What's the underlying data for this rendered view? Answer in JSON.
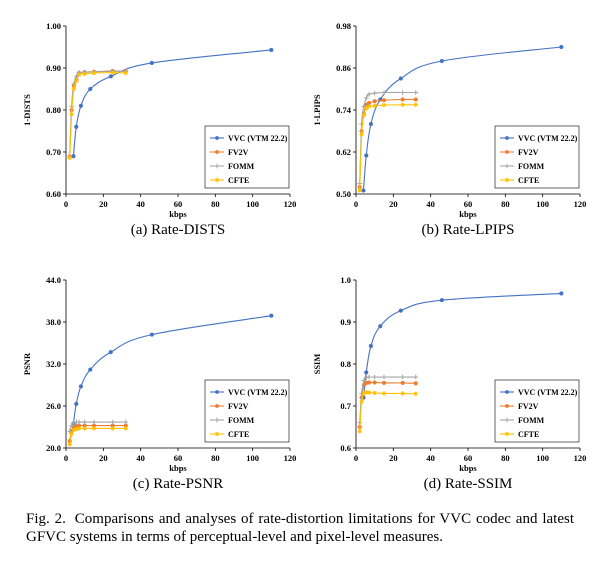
{
  "legend_series_names": [
    "VVC (VTM 22.2)",
    "FV2V",
    "FOMM",
    "CFTE"
  ],
  "colors": {
    "vvc": "#4472C4",
    "fv2v": "#ED7D31",
    "fomm": "#A5A5A5",
    "cfte": "#FFC000"
  },
  "chart_data": [
    {
      "type": "line",
      "caption": "(a) Rate-DISTS",
      "xlabel": "kbps",
      "ylabel": "1-DISTS",
      "xlim": [
        0,
        120
      ],
      "ylim": [
        0.6,
        1.0
      ],
      "xticks": [
        "0",
        "20",
        "40",
        "60",
        "80",
        "100",
        "120"
      ],
      "yticks": [
        "0.60",
        "0.70",
        "0.80",
        "0.90",
        "1.00"
      ],
      "grid": false,
      "legend": "bottom-right",
      "series": [
        {
          "name": "VVC (VTM 22.2)",
          "x": [
            4.0,
            5.5,
            8.0,
            13.0,
            24.0,
            46.0,
            110.0
          ],
          "y": [
            0.69,
            0.76,
            0.81,
            0.85,
            0.88,
            0.912,
            0.943
          ]
        },
        {
          "name": "FV2V",
          "x": [
            2.0,
            3.0,
            4.2,
            5.6,
            7.0,
            10.0,
            15.0,
            25.0,
            32.0
          ],
          "y": [
            0.689,
            0.8,
            0.858,
            0.873,
            0.888,
            0.89,
            0.891,
            0.893,
            0.892
          ]
        },
        {
          "name": "FOMM",
          "x": [
            2.0,
            3.0,
            4.2,
            5.6,
            7.0,
            10.0,
            15.0,
            25.0,
            32.0
          ],
          "y": [
            0.689,
            0.808,
            0.862,
            0.88,
            0.889,
            0.89,
            0.891,
            0.892,
            0.892
          ]
        },
        {
          "name": "CFTE",
          "x": [
            2.0,
            3.0,
            4.2,
            5.6,
            7.0,
            10.0,
            15.0,
            25.0,
            32.0
          ],
          "y": [
            0.686,
            0.79,
            0.85,
            0.869,
            0.884,
            0.886,
            0.888,
            0.889,
            0.888
          ]
        }
      ]
    },
    {
      "type": "line",
      "caption": "(b) Rate-LPIPS",
      "xlabel": "kbps",
      "ylabel": "1-LPIPS",
      "xlim": [
        0,
        120
      ],
      "ylim": [
        0.5,
        0.98
      ],
      "xticks": [
        "0",
        "20",
        "40",
        "60",
        "80",
        "100",
        "120"
      ],
      "yticks": [
        "0.50",
        "0.62",
        "0.74",
        "0.86",
        "0.98"
      ],
      "grid": false,
      "legend": "bottom-right",
      "series": [
        {
          "name": "VVC (VTM 22.2)",
          "x": [
            4.0,
            5.5,
            8.0,
            13.0,
            24.0,
            46.0,
            110.0
          ],
          "y": [
            0.51,
            0.61,
            0.7,
            0.77,
            0.83,
            0.88,
            0.92
          ]
        },
        {
          "name": "FV2V",
          "x": [
            2.0,
            3.0,
            4.2,
            5.6,
            7.0,
            10.0,
            15.0,
            25.0,
            32.0
          ],
          "y": [
            0.52,
            0.68,
            0.73,
            0.755,
            0.76,
            0.765,
            0.768,
            0.77,
            0.77
          ]
        },
        {
          "name": "FOMM",
          "x": [
            2.0,
            3.0,
            4.2,
            5.6,
            7.0,
            10.0,
            15.0,
            25.0,
            32.0
          ],
          "y": [
            0.53,
            0.7,
            0.75,
            0.775,
            0.785,
            0.788,
            0.79,
            0.79,
            0.79
          ]
        },
        {
          "name": "CFTE",
          "x": [
            2.0,
            3.0,
            4.2,
            5.6,
            7.0,
            10.0,
            15.0,
            25.0,
            32.0
          ],
          "y": [
            0.51,
            0.67,
            0.725,
            0.745,
            0.75,
            0.752,
            0.754,
            0.755,
            0.755
          ]
        }
      ]
    },
    {
      "type": "line",
      "caption": "(c) Rate-PSNR",
      "xlabel": "kbps",
      "ylabel": "PSNR",
      "xlim": [
        0,
        120
      ],
      "ylim": [
        20.0,
        44.0
      ],
      "xticks": [
        "0",
        "20",
        "40",
        "60",
        "80",
        "100",
        "120"
      ],
      "yticks": [
        "20.0",
        "26.0",
        "32.0",
        "38.0",
        "44.0"
      ],
      "grid": false,
      "legend": "bottom-right",
      "series": [
        {
          "name": "VVC (VTM 22.2)",
          "x": [
            4.0,
            5.5,
            8.0,
            13.0,
            24.0,
            46.0,
            110.0
          ],
          "y": [
            23.5,
            26.3,
            28.8,
            31.2,
            33.7,
            36.2,
            38.9
          ]
        },
        {
          "name": "FV2V",
          "x": [
            2.0,
            3.0,
            4.2,
            5.6,
            7.0,
            10.0,
            15.0,
            25.0,
            32.0
          ],
          "y": [
            21.0,
            22.4,
            23.0,
            23.1,
            23.2,
            23.2,
            23.2,
            23.2,
            23.2
          ]
        },
        {
          "name": "FOMM",
          "x": [
            2.0,
            3.0,
            4.2,
            5.6,
            7.0,
            10.0,
            15.0,
            25.0,
            32.0
          ],
          "y": [
            22.4,
            23.2,
            23.6,
            23.7,
            23.7,
            23.7,
            23.7,
            23.7,
            23.7
          ]
        },
        {
          "name": "CFTE",
          "x": [
            2.0,
            3.0,
            4.2,
            5.6,
            7.0,
            10.0,
            15.0,
            25.0,
            32.0
          ],
          "y": [
            20.5,
            22.0,
            22.6,
            22.7,
            22.8,
            22.8,
            22.8,
            22.8,
            22.8
          ]
        }
      ]
    },
    {
      "type": "line",
      "caption": "(d) Rate-SSIM",
      "xlabel": "kbps",
      "ylabel": "SSIM",
      "xlim": [
        0,
        120
      ],
      "ylim": [
        0.6,
        1.0
      ],
      "xticks": [
        "0",
        "20",
        "40",
        "60",
        "80",
        "100",
        "120"
      ],
      "yticks": [
        "0.6",
        "0.7",
        "0.8",
        "0.9",
        "1.0"
      ],
      "grid": false,
      "legend": "bottom-right",
      "series": [
        {
          "name": "VVC (VTM 22.2)",
          "x": [
            4.0,
            5.5,
            8.0,
            13.0,
            24.0,
            46.0,
            110.0
          ],
          "y": [
            0.72,
            0.78,
            0.843,
            0.89,
            0.927,
            0.952,
            0.968
          ]
        },
        {
          "name": "FV2V",
          "x": [
            2.0,
            3.0,
            4.2,
            5.6,
            7.0,
            10.0,
            15.0,
            25.0,
            32.0
          ],
          "y": [
            0.65,
            0.72,
            0.75,
            0.755,
            0.756,
            0.756,
            0.755,
            0.755,
            0.754
          ]
        },
        {
          "name": "FOMM",
          "x": [
            2.0,
            3.0,
            4.2,
            5.6,
            7.0,
            10.0,
            15.0,
            25.0,
            32.0
          ],
          "y": [
            0.66,
            0.73,
            0.76,
            0.768,
            0.769,
            0.769,
            0.769,
            0.769,
            0.769
          ]
        },
        {
          "name": "CFTE",
          "x": [
            2.0,
            3.0,
            4.2,
            5.6,
            7.0,
            10.0,
            15.0,
            25.0,
            32.0
          ],
          "y": [
            0.64,
            0.71,
            0.73,
            0.733,
            0.732,
            0.731,
            0.73,
            0.73,
            0.729
          ]
        }
      ]
    }
  ],
  "figure_caption": {
    "label": "Fig. 2.",
    "text": "Comparisons and analyses of rate-distortion limitations for VVC codec and latest GFVC systems in terms of perceptual-level and pixel-level measures."
  }
}
